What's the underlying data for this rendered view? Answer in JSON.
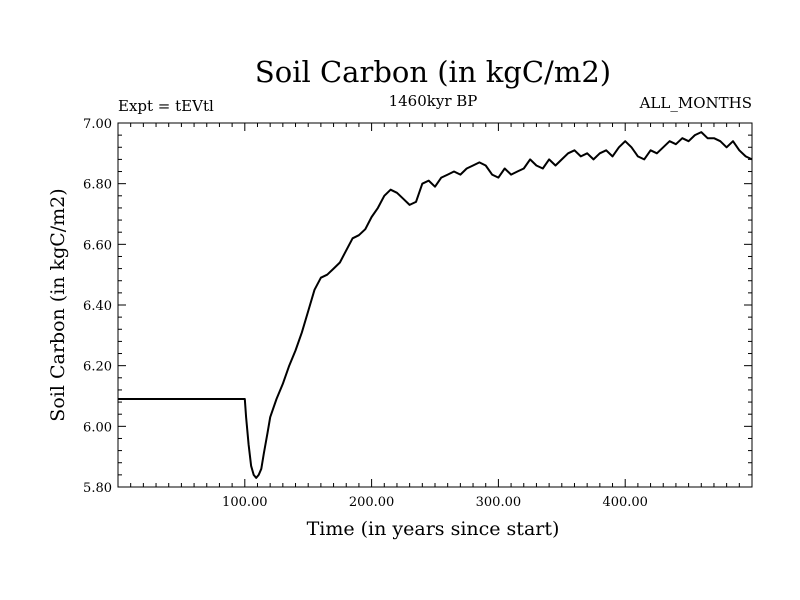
{
  "chart_data": {
    "type": "line",
    "title": "Soil Carbon (in kgC/m2)",
    "subtitle_left": "Expt = tEVtl",
    "subtitle_center": "1460kyr BP",
    "subtitle_right": "ALL_MONTHS",
    "xlabel": "Time (in years since start)",
    "ylabel": "Soil Carbon (in kgC/m2)",
    "xlim": [
      0,
      500
    ],
    "ylim": [
      5.8,
      7.0
    ],
    "x_ticks": [
      {
        "value": 100,
        "label": "100.00"
      },
      {
        "value": 200,
        "label": "200.00"
      },
      {
        "value": 300,
        "label": "300.00"
      },
      {
        "value": 400,
        "label": "400.00"
      }
    ],
    "y_ticks": [
      {
        "value": 5.8,
        "label": "5.80"
      },
      {
        "value": 6.0,
        "label": "6.00"
      },
      {
        "value": 6.2,
        "label": "6.20"
      },
      {
        "value": 6.4,
        "label": "6.40"
      },
      {
        "value": 6.6,
        "label": "6.60"
      },
      {
        "value": 6.8,
        "label": "6.80"
      },
      {
        "value": 7.0,
        "label": "7.00"
      }
    ],
    "grid": false,
    "series": [
      {
        "name": "Soil Carbon",
        "x": [
          0,
          99,
          100,
          101,
          103,
          105,
          107,
          109,
          111,
          113,
          115,
          118,
          120,
          125,
          130,
          135,
          140,
          145,
          150,
          155,
          160,
          165,
          170,
          175,
          180,
          185,
          190,
          195,
          200,
          205,
          210,
          215,
          220,
          225,
          230,
          235,
          240,
          245,
          250,
          255,
          260,
          265,
          270,
          275,
          280,
          285,
          290,
          295,
          300,
          305,
          310,
          315,
          320,
          325,
          330,
          335,
          340,
          345,
          350,
          355,
          360,
          365,
          370,
          375,
          380,
          385,
          390,
          395,
          400,
          405,
          410,
          415,
          420,
          425,
          430,
          435,
          440,
          445,
          450,
          455,
          460,
          465,
          470,
          475,
          480,
          485,
          490,
          495,
          500
        ],
        "y": [
          6.09,
          6.09,
          6.09,
          6.03,
          5.94,
          5.87,
          5.84,
          5.83,
          5.84,
          5.86,
          5.91,
          5.98,
          6.03,
          6.09,
          6.14,
          6.2,
          6.25,
          6.31,
          6.38,
          6.45,
          6.49,
          6.5,
          6.52,
          6.54,
          6.58,
          6.62,
          6.63,
          6.65,
          6.69,
          6.72,
          6.76,
          6.78,
          6.77,
          6.75,
          6.73,
          6.74,
          6.8,
          6.81,
          6.79,
          6.82,
          6.83,
          6.84,
          6.83,
          6.85,
          6.86,
          6.87,
          6.86,
          6.83,
          6.82,
          6.85,
          6.83,
          6.84,
          6.85,
          6.88,
          6.86,
          6.85,
          6.88,
          6.86,
          6.88,
          6.9,
          6.91,
          6.89,
          6.9,
          6.88,
          6.9,
          6.91,
          6.89,
          6.92,
          6.94,
          6.92,
          6.89,
          6.88,
          6.91,
          6.9,
          6.92,
          6.94,
          6.93,
          6.95,
          6.94,
          6.96,
          6.97,
          6.95,
          6.95,
          6.94,
          6.92,
          6.94,
          6.91,
          6.89,
          6.88
        ]
      }
    ]
  }
}
